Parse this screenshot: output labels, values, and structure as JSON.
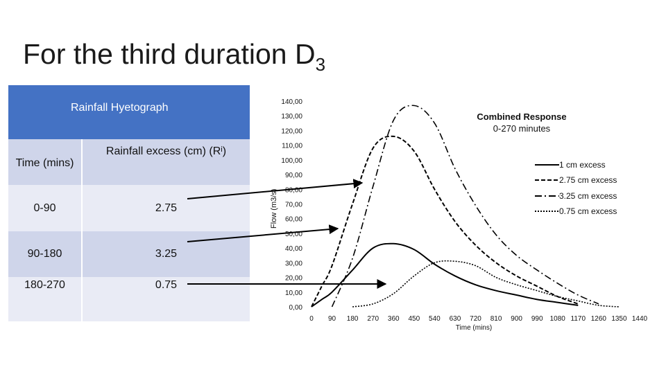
{
  "slide": {
    "title": "For the third duration D",
    "title_subscript": "3"
  },
  "table": {
    "header": "Rainfall Hyetograph",
    "columns": [
      "Time (mins)",
      "Rainfall excess (cm) (R",
      "i",
      ")"
    ],
    "rows": [
      {
        "time": "0-90",
        "excess": "2.75"
      },
      {
        "time": "90-180",
        "excess": "3.25"
      },
      {
        "time": "180-270",
        "excess": "0.75"
      }
    ],
    "colors": {
      "header": "#4472c4",
      "row_dark": "#cfd5ea",
      "row_light": "#e9ebf5"
    }
  },
  "chart_data": {
    "type": "line",
    "title": "Combined Response",
    "subtitle": "0-270 minutes",
    "xlabel": "Time (mins)",
    "ylabel": "Flow (m3/s)",
    "xlim": [
      0,
      1440
    ],
    "ylim": [
      0,
      140
    ],
    "x_ticks": [
      "0",
      "90",
      "180",
      "270",
      "360",
      "450",
      "540",
      "630",
      "720",
      "810",
      "900",
      "990",
      "1080",
      "1170",
      "1260",
      "1350",
      "1440"
    ],
    "y_ticks": [
      "0,00",
      "10,00",
      "20,00",
      "30,00",
      "40,00",
      "50,00",
      "60,00",
      "70,00",
      "80,00",
      "90,00",
      "100,00",
      "110,00",
      "120,00",
      "130,00",
      "140,00"
    ],
    "legend_position": "right",
    "series": [
      {
        "name": "1 cm excess",
        "style": "long-dash",
        "x": [
          0,
          45,
          90,
          180,
          270,
          360,
          450,
          540,
          630,
          720,
          810,
          900,
          990,
          1080,
          1170
        ],
        "y": [
          0,
          5,
          10,
          25,
          40,
          43,
          39,
          29,
          21,
          15,
          11,
          8,
          5,
          3,
          1
        ]
      },
      {
        "name": "2.75 cm excess",
        "style": "short-dash",
        "x": [
          0,
          45,
          90,
          180,
          270,
          360,
          450,
          540,
          630,
          720,
          810,
          900,
          990,
          1080,
          1170
        ],
        "y": [
          0,
          14,
          28,
          70,
          108,
          116,
          106,
          80,
          58,
          42,
          30,
          21,
          14,
          7,
          2
        ]
      },
      {
        "name": "3.25 cm excess",
        "style": "dash-dot",
        "x": [
          90,
          180,
          270,
          360,
          450,
          540,
          630,
          720,
          810,
          900,
          990,
          1080,
          1170,
          1260
        ],
        "y": [
          0,
          33,
          82,
          127,
          137,
          125,
          94,
          69,
          49,
          35,
          25,
          16,
          8,
          2
        ]
      },
      {
        "name": "0.75 cm excess",
        "style": "dotted",
        "x": [
          180,
          270,
          360,
          450,
          540,
          630,
          720,
          810,
          900,
          990,
          1080,
          1170,
          1260,
          1350
        ],
        "y": [
          0,
          2,
          9,
          21,
          30,
          31,
          28,
          20,
          15,
          11,
          7,
          4,
          1,
          0
        ]
      }
    ]
  },
  "colors": {
    "line": "#000000",
    "text": "#111111",
    "arrow": "#000000"
  }
}
